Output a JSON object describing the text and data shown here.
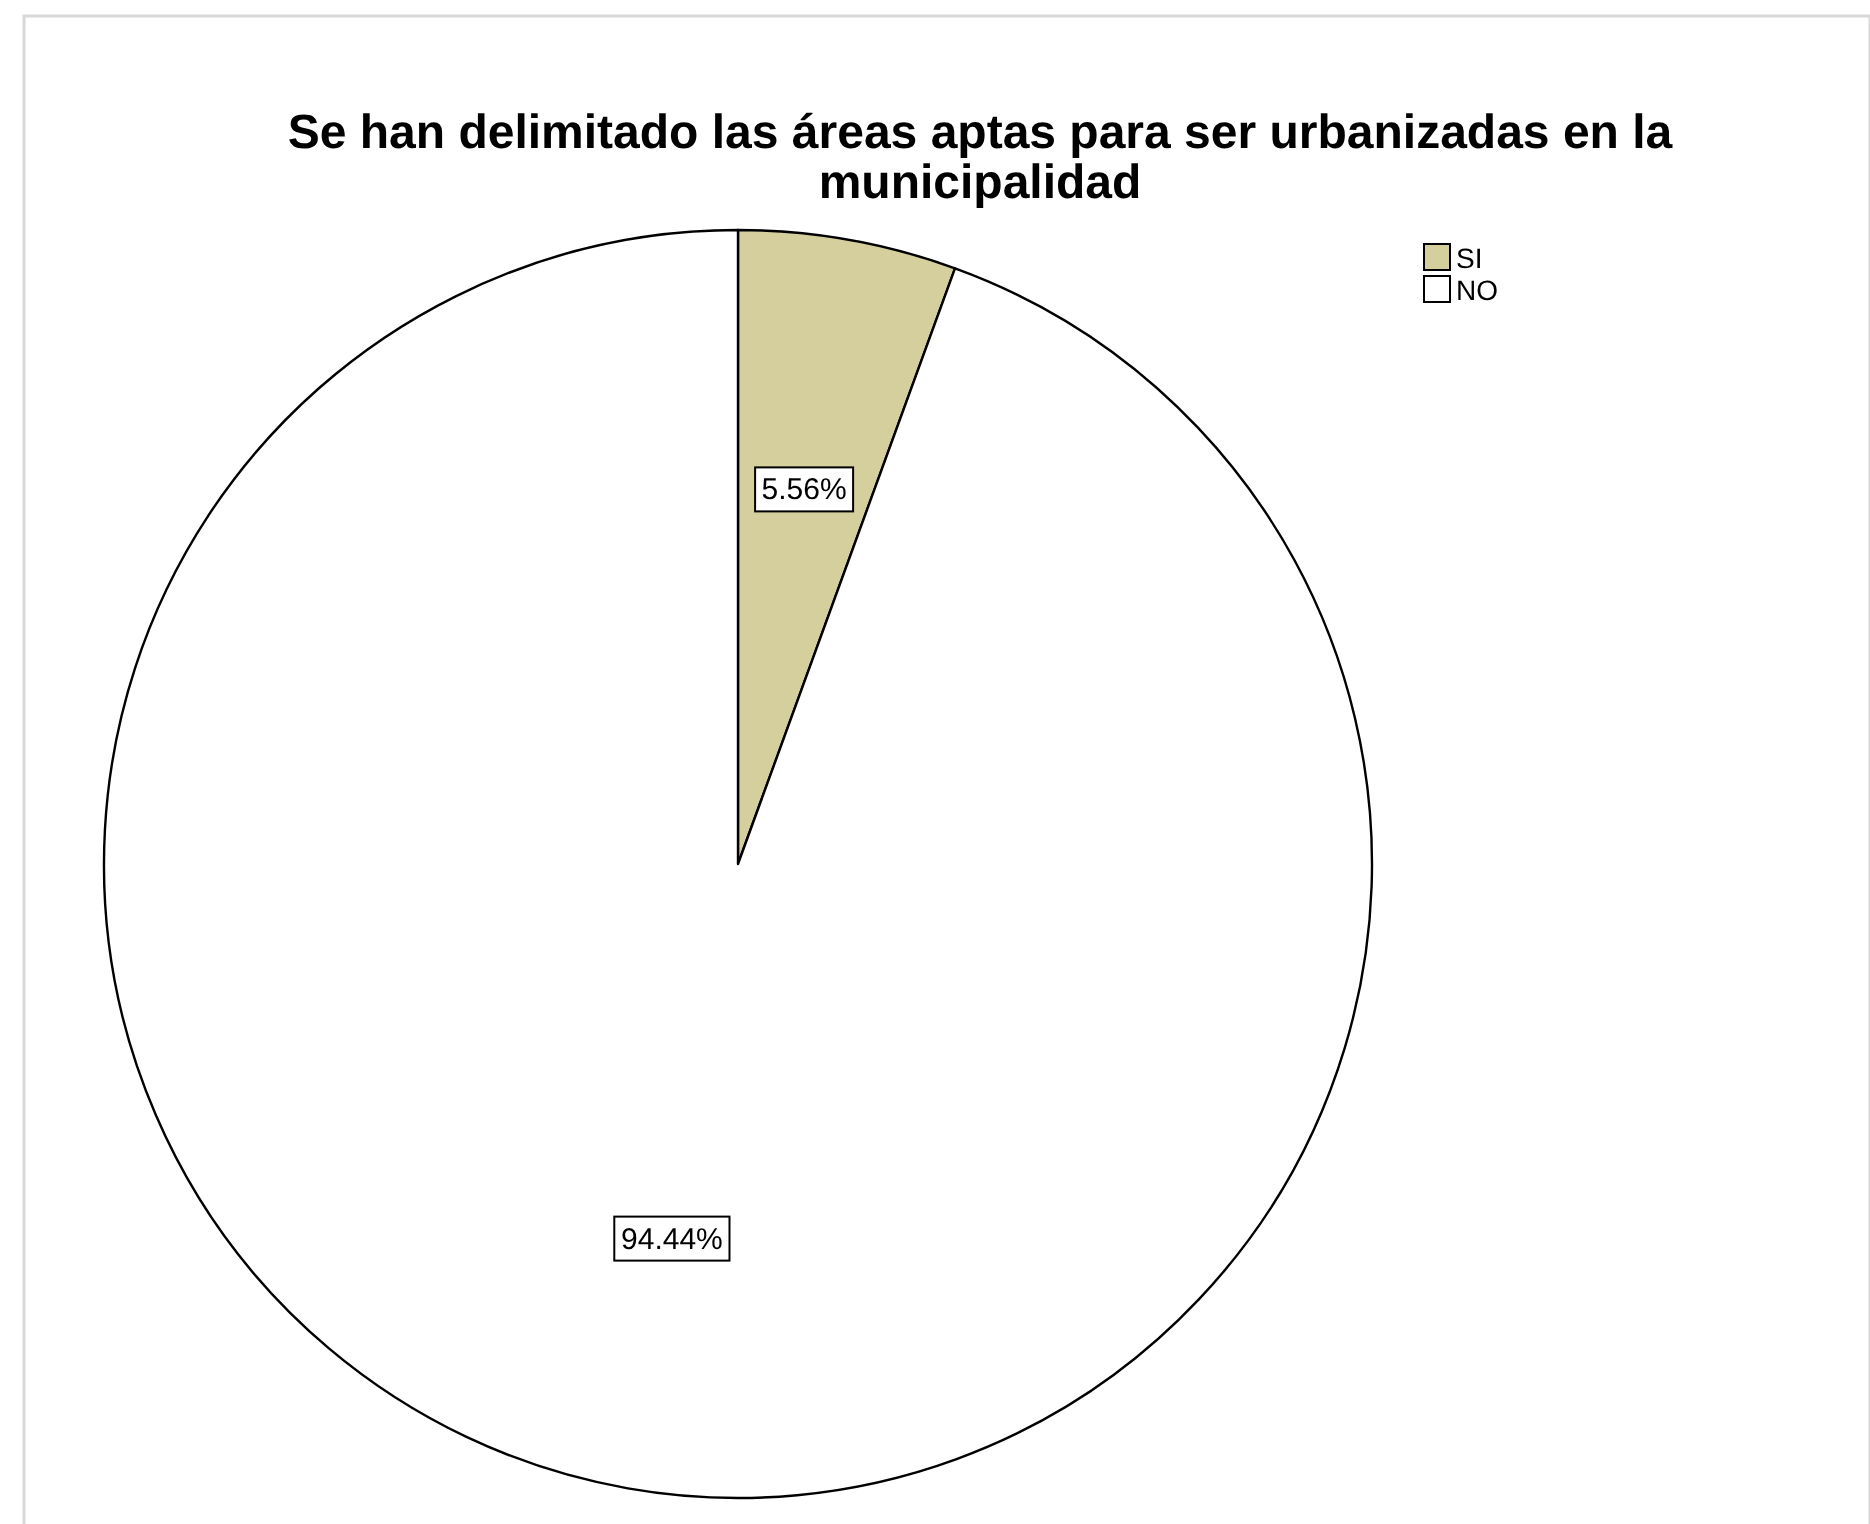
{
  "chart_data": {
    "type": "pie",
    "title": "Se han delimitado las áreas aptas para ser urbanizadas en la municipalidad",
    "categories": [
      "SI",
      "NO"
    ],
    "values": [
      5.56,
      94.44
    ],
    "colors": [
      "#d5cf9e",
      "#ffffff"
    ],
    "value_labels": [
      "5.56%",
      "94.44%"
    ],
    "legend": "top right"
  }
}
